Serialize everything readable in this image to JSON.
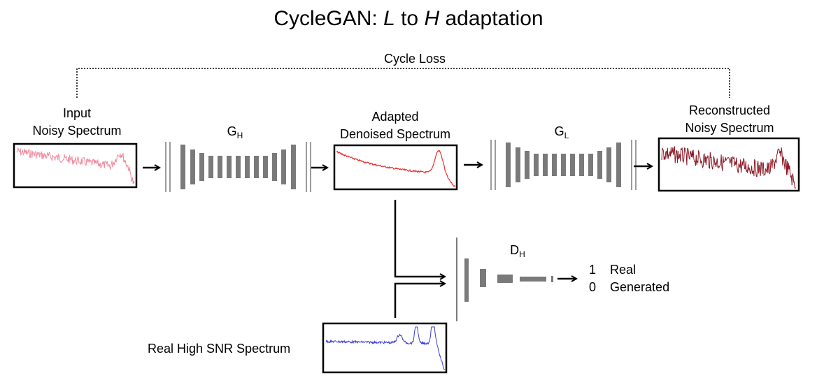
{
  "title": {
    "prefix": "CycleGAN: ",
    "from": "L",
    "middle": " to ",
    "to": "H",
    "suffix": " adaptation"
  },
  "cycle_loss": "Cycle Loss",
  "input": {
    "line1": "Input",
    "line2": "Noisy Spectrum",
    "color": "#f08a9e"
  },
  "generator_h": {
    "base": "G",
    "sub": "H"
  },
  "adapted": {
    "line1": "Adapted",
    "line2": "Denoised Spectrum",
    "color": "#e8312f"
  },
  "generator_l": {
    "base": "G",
    "sub": "L"
  },
  "reconstructed": {
    "line1": "Reconstructed",
    "line2": "Noisy Spectrum",
    "color": "#8b1a26"
  },
  "discriminator": {
    "base": "D",
    "sub": "H"
  },
  "outputs": [
    {
      "value": "1",
      "label": "Real"
    },
    {
      "value": "0",
      "label": "Generated"
    }
  ],
  "real": {
    "label": "Real High SNR Spectrum",
    "color": "#3a3ad6"
  },
  "colors": {
    "layer": "#7a7a7a",
    "line": "#000000"
  }
}
